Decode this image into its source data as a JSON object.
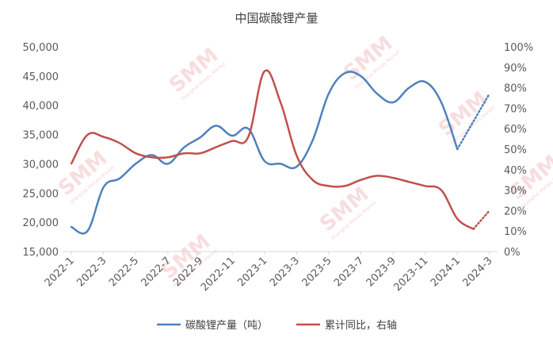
{
  "chart_data": {
    "type": "line",
    "title": "中国碳酸锂产量",
    "x_tick_labels": [
      "2022-1",
      "2022-3",
      "2022-5",
      "2022-7",
      "2022-9",
      "2022-11",
      "2023-1",
      "2023-3",
      "2023-5",
      "2023-7",
      "2023-9",
      "2023-11",
      "2024-1",
      "2024-3"
    ],
    "y_left": {
      "ticks": [
        "15,000",
        "20,000",
        "25,000",
        "30,000",
        "35,000",
        "40,000",
        "45,000",
        "50,000"
      ],
      "range": [
        15000,
        50000
      ]
    },
    "y_right": {
      "ticks": [
        "0%",
        "10%",
        "20%",
        "30%",
        "40%",
        "50%",
        "60%",
        "70%",
        "80%",
        "90%",
        "100%"
      ],
      "range": [
        0,
        100
      ]
    },
    "categories": [
      "2022-1",
      "2022-2",
      "2022-3",
      "2022-4",
      "2022-5",
      "2022-6",
      "2022-7",
      "2022-8",
      "2022-9",
      "2022-10",
      "2022-11",
      "2022-12",
      "2023-1",
      "2023-2",
      "2023-3",
      "2023-4",
      "2023-5",
      "2023-6",
      "2023-7",
      "2023-8",
      "2023-9",
      "2023-10",
      "2023-11",
      "2023-12",
      "2024-1",
      "2024-2",
      "2024-3"
    ],
    "series": [
      {
        "name": "碳酸锂产量（吨）",
        "axis": "left",
        "color": "#4f81bd",
        "values": [
          19200,
          18500,
          26000,
          27500,
          30000,
          31500,
          30000,
          32800,
          34500,
          36500,
          34800,
          36000,
          30500,
          30000,
          29500,
          34000,
          42000,
          45500,
          45000,
          42000,
          40500,
          43000,
          44000,
          40500,
          32500,
          null,
          null
        ],
        "projection": [
          {
            "x": "2024-1",
            "y": 32500
          },
          {
            "x": "2024-3",
            "y": 42000
          }
        ]
      },
      {
        "name": "累计同比，右轴",
        "axis": "right",
        "color": "#c0504d",
        "values": [
          43,
          57,
          56,
          53,
          48,
          46,
          46,
          48,
          48,
          51,
          54,
          56,
          88,
          73,
          47,
          35,
          32,
          32,
          35,
          37,
          36,
          34,
          32,
          30,
          16,
          11,
          null
        ],
        "projection": [
          {
            "x": "2024-2",
            "y": 11
          },
          {
            "x": "2024-3",
            "y": 20
          }
        ]
      }
    ],
    "legend": "bottom",
    "grid": false
  },
  "watermark": {
    "main": "SMM",
    "sub": "Shanghai Metals Market",
    "color": "#f2c4c4"
  }
}
